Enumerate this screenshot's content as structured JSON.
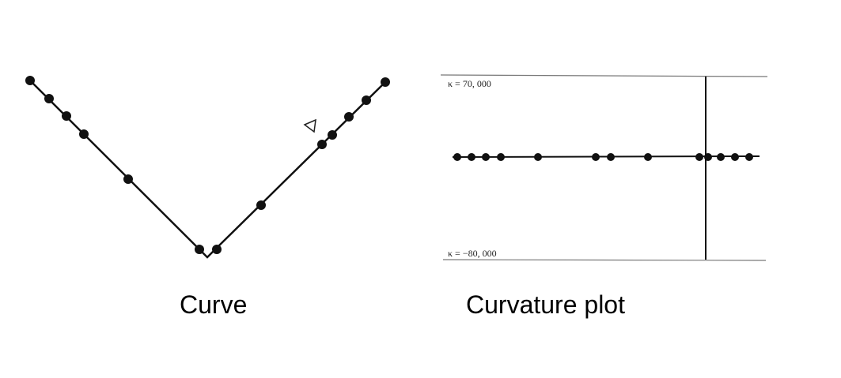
{
  "captions": {
    "curve": "Curve",
    "curvature": "Curvature plot"
  },
  "curvature_plot": {
    "upper_label": "κ = 70, 000",
    "lower_label": "κ = −80, 000"
  },
  "colors": {
    "ink": "#111111",
    "guide": "#777777"
  }
}
